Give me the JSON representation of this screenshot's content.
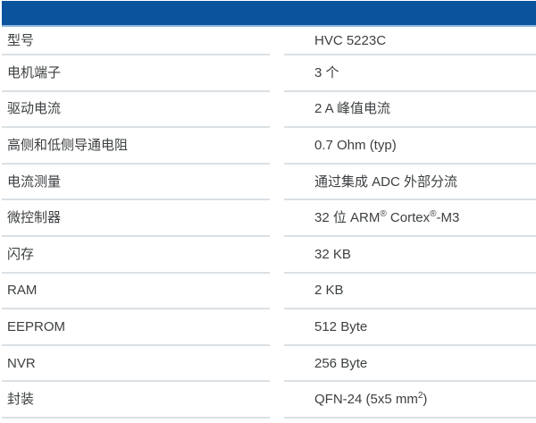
{
  "header_bar": {
    "color": "#0b549d",
    "underline_color": "#8fb5db"
  },
  "table": {
    "text_color": "#3d4042",
    "divider_color": "#dbe0e4",
    "rows": [
      {
        "name": "model",
        "label": "型号",
        "value": [
          {
            "t": "HVC 5223C"
          }
        ]
      },
      {
        "name": "motor-terminals",
        "label": "电机端子",
        "value": [
          {
            "t": "3 个"
          }
        ]
      },
      {
        "name": "drive-current",
        "label": "驱动电流",
        "value": [
          {
            "t": "2 A 峰值电流"
          }
        ]
      },
      {
        "name": "on-resistance",
        "label": "高侧和低侧导通电阻",
        "value": [
          {
            "t": "0.7 Ohm (typ)"
          }
        ]
      },
      {
        "name": "current-measurement",
        "label": "电流测量",
        "value": [
          {
            "t": "通过集成 ADC 外部分流"
          }
        ]
      },
      {
        "name": "microcontroller",
        "label": "微控制器",
        "value": [
          {
            "t": "32 位 ARM"
          },
          {
            "t": "®",
            "sup": true
          },
          {
            "t": " Cortex"
          },
          {
            "t": "®",
            "sup": true
          },
          {
            "t": "-M3"
          }
        ]
      },
      {
        "name": "flash",
        "label": "闪存",
        "value": [
          {
            "t": "32 KB"
          }
        ]
      },
      {
        "name": "ram",
        "label": "RAM",
        "value": [
          {
            "t": "2 KB"
          }
        ]
      },
      {
        "name": "eeprom",
        "label": "EEPROM",
        "value": [
          {
            "t": "512 Byte"
          }
        ]
      },
      {
        "name": "nvr",
        "label": "NVR",
        "value": [
          {
            "t": "256 Byte"
          }
        ]
      },
      {
        "name": "package",
        "label": "封装",
        "value": [
          {
            "t": "QFN-24 (5x5 mm"
          },
          {
            "t": "2",
            "sup": true
          },
          {
            "t": ")"
          }
        ]
      }
    ]
  }
}
